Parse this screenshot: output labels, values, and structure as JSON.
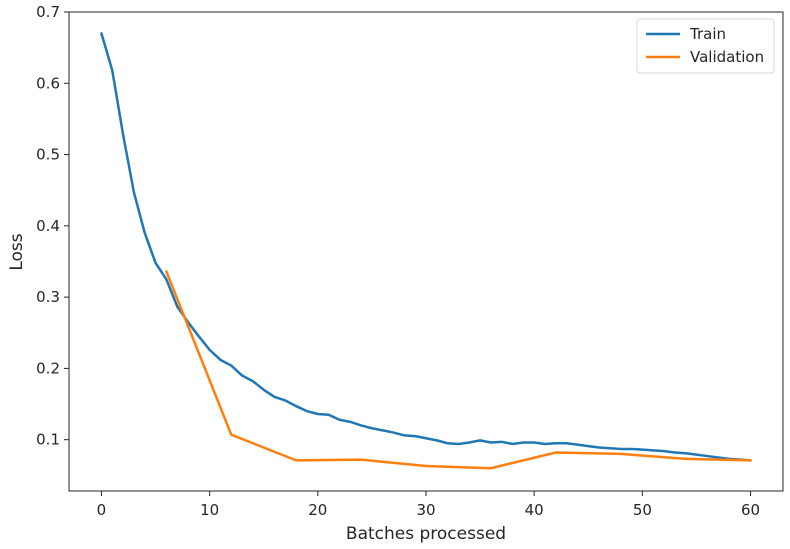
{
  "chart_data": {
    "type": "line",
    "title": "",
    "xlabel": "Batches processed",
    "ylabel": "Loss",
    "xlim": [
      -3,
      63
    ],
    "ylim": [
      0.028,
      0.7
    ],
    "xticks": [
      0,
      10,
      20,
      30,
      40,
      50,
      60
    ],
    "yticks": [
      0.1,
      0.2,
      0.3,
      0.4,
      0.5,
      0.6,
      0.7
    ],
    "xtick_labels": [
      "0",
      "10",
      "20",
      "30",
      "40",
      "50",
      "60"
    ],
    "ytick_labels": [
      "0.1",
      "0.2",
      "0.3",
      "0.4",
      "0.5",
      "0.6",
      "0.7"
    ],
    "grid": false,
    "legend_position": "top-right",
    "series": [
      {
        "name": "Train",
        "color": "#1f77b4",
        "x": [
          0,
          1,
          2,
          3,
          4,
          5,
          6,
          7,
          8,
          9,
          10,
          11,
          12,
          13,
          14,
          15,
          16,
          17,
          18,
          19,
          20,
          21,
          22,
          23,
          24,
          25,
          26,
          27,
          28,
          29,
          30,
          31,
          32,
          33,
          34,
          35,
          36,
          37,
          38,
          39,
          40,
          41,
          42,
          43,
          44,
          45,
          46,
          47,
          48,
          49,
          50,
          51,
          52,
          53,
          54,
          55,
          56,
          57,
          58,
          59,
          60
        ],
        "y": [
          0.67,
          0.618,
          0.528,
          0.447,
          0.39,
          0.348,
          0.325,
          0.287,
          0.265,
          0.245,
          0.226,
          0.212,
          0.204,
          0.19,
          0.182,
          0.17,
          0.16,
          0.155,
          0.147,
          0.14,
          0.136,
          0.135,
          0.128,
          0.125,
          0.12,
          0.116,
          0.113,
          0.11,
          0.106,
          0.105,
          0.102,
          0.099,
          0.095,
          0.094,
          0.096,
          0.099,
          0.096,
          0.097,
          0.094,
          0.096,
          0.096,
          0.094,
          0.095,
          0.095,
          0.093,
          0.091,
          0.089,
          0.088,
          0.087,
          0.087,
          0.086,
          0.085,
          0.084,
          0.082,
          0.081,
          0.079,
          0.077,
          0.075,
          0.073,
          0.072,
          0.071
        ]
      },
      {
        "name": "Validation",
        "color": "#ff7f0e",
        "x": [
          6,
          12,
          18,
          24,
          30,
          36,
          42,
          48,
          54,
          60
        ],
        "y": [
          0.336,
          0.107,
          0.071,
          0.072,
          0.063,
          0.06,
          0.082,
          0.08,
          0.073,
          0.071
        ]
      }
    ]
  }
}
